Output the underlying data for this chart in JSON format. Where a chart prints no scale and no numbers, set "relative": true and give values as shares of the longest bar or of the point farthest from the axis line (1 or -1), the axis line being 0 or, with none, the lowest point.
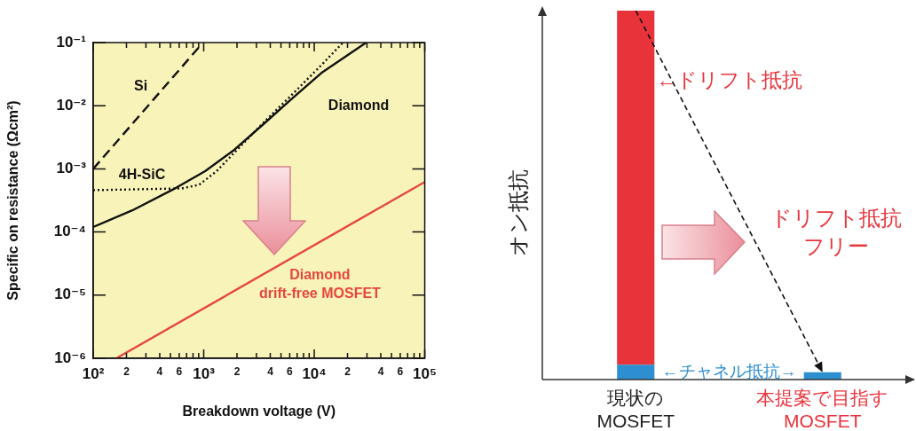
{
  "chart_data": [
    {
      "type": "line",
      "xlabel": "Breakdown voltage (V)",
      "ylabel": "Specific on resistance (Ωcm²)",
      "log": "xy",
      "grid": false,
      "marker": "none",
      "xlim": [
        100,
        100000
      ],
      "ylim": [
        1e-06,
        0.1
      ],
      "annotations": [
        "2",
        "4",
        "6",
        "2",
        "4",
        "6",
        "2",
        "4",
        "6"
      ],
      "xticks": [
        {
          "value": 100,
          "label": "10²"
        },
        {
          "value": 200,
          "label": null
        },
        {
          "value": 300,
          "label": null
        },
        {
          "value": 400,
          "label": null
        },
        {
          "value": 500,
          "label": null
        },
        {
          "value": 600,
          "label": null
        },
        {
          "value": 700,
          "label": null
        },
        {
          "value": 800,
          "label": null
        },
        {
          "value": 900,
          "label": null
        },
        {
          "value": 1000,
          "label": "10³"
        },
        {
          "value": 2000,
          "label": null
        },
        {
          "value": 3000,
          "label": null
        },
        {
          "value": 4000,
          "label": null
        },
        {
          "value": 5000,
          "label": null
        },
        {
          "value": 6000,
          "label": null
        },
        {
          "value": 7000,
          "label": null
        },
        {
          "value": 8000,
          "label": null
        },
        {
          "value": 9000,
          "label": null
        },
        {
          "value": 10000,
          "label": "10⁴"
        },
        {
          "value": 20000,
          "label": null
        },
        {
          "value": 30000,
          "label": null
        },
        {
          "value": 40000,
          "label": null
        },
        {
          "value": 50000,
          "label": null
        },
        {
          "value": 60000,
          "label": null
        },
        {
          "value": 70000,
          "label": null
        },
        {
          "value": 80000,
          "label": null
        },
        {
          "value": 90000,
          "label": null
        },
        {
          "value": 100000,
          "label": "10⁵"
        }
      ],
      "yticks": [
        {
          "value": 1e-06,
          "label": "10⁻⁶"
        },
        {
          "value": 1e-05,
          "label": "10⁻⁵"
        },
        {
          "value": 0.0001,
          "label": "10⁻⁴"
        },
        {
          "value": 0.001,
          "label": "10⁻³"
        },
        {
          "value": 0.01,
          "label": "10⁻²"
        },
        {
          "value": 0.1,
          "label": "10⁻¹"
        }
      ],
      "series": [
        {
          "name": "Si",
          "color": "#111111",
          "line_style": "dashed",
          "x": [
            100,
            940
          ],
          "values": [
            0.001,
            0.091
          ]
        },
        {
          "name": "4H-SiC",
          "color": "#111111",
          "line_style": "dotted",
          "x": [
            100,
            635,
            910,
            1310,
            1890,
            3470,
            6300,
            11600,
            18200
          ],
          "values": [
            0.00046,
            0.00049,
            0.00056,
            0.00092,
            0.0018,
            0.0054,
            0.015,
            0.044,
            0.1
          ]
        },
        {
          "name": "Diamond",
          "color": "#111111",
          "line_style": "solid",
          "x": [
            100,
            226,
            562,
            1030,
            1890,
            3470,
            6300,
            11600,
            29500
          ],
          "values": [
            0.00012,
            0.00022,
            0.0005,
            0.00092,
            0.002,
            0.0051,
            0.013,
            0.033,
            0.1
          ]
        },
        {
          "name": "Diamond drift-free MOSFET",
          "color": "#e8453c",
          "line_style": "solid",
          "x": [
            162,
            100000
          ],
          "values": [
            1e-06,
            0.00062
          ]
        }
      ]
    },
    {
      "type": "bar",
      "stacked": true,
      "relative": true,
      "ylabel": "オン抵抗",
      "categories": [
        "現状の MOSFET",
        "本提案で目指す MOSFET"
      ],
      "series": [
        {
          "name": "←チャネル抵抗→",
          "color": "#2e8fd0",
          "values": [
            0.04,
            0.02
          ]
        },
        {
          "name": "←ドリフト抵抗",
          "color": "#e8333b",
          "values": [
            0.96,
            0
          ]
        }
      ],
      "annotations": [
        "ドリフト抵抗フリー"
      ]
    }
  ]
}
